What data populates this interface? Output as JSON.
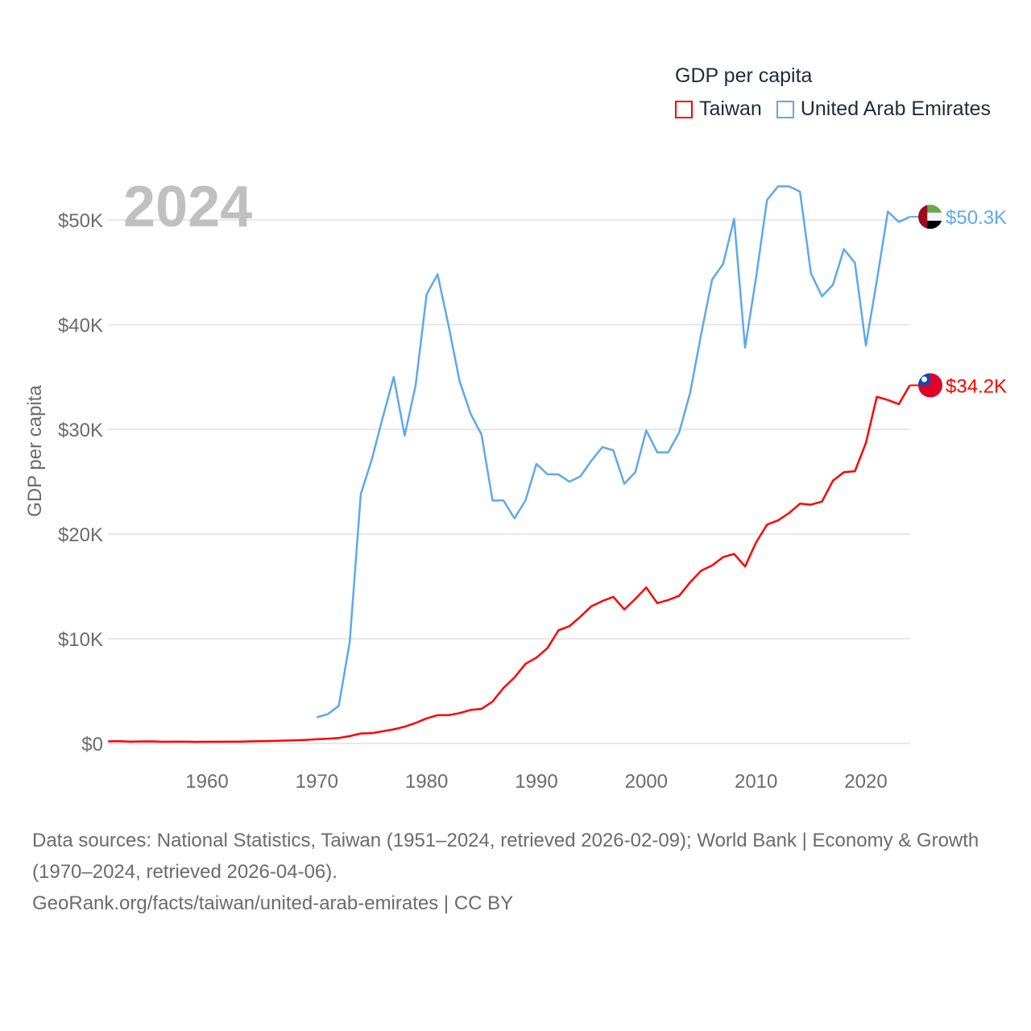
{
  "legend": {
    "title": "GDP per capita",
    "items": [
      {
        "label": "Taiwan",
        "color": "#ff0000"
      },
      {
        "label": "United Arab Emirates",
        "color": "#5ea8ef"
      }
    ]
  },
  "year_label": "2024",
  "source": {
    "line1": "Data sources: National Statistics, Taiwan (1951–2024, retrieved 2026-02-09); World Bank | Economy & Growth (1970–2024, retrieved 2026-04-06).",
    "line2": "GeoRank.org/facts/taiwan/united-arab-emirates | CC BY"
  },
  "chart_data": {
    "type": "line",
    "ylabel": "GDP per capita",
    "xlabel": "",
    "xlim": [
      1951,
      2024
    ],
    "ylim": [
      0,
      55
    ],
    "yticks": [
      {
        "v": 0,
        "label": "$0"
      },
      {
        "v": 10,
        "label": "$10K"
      },
      {
        "v": 20,
        "label": "$20K"
      },
      {
        "v": 30,
        "label": "$30K"
      },
      {
        "v": 40,
        "label": "$40K"
      },
      {
        "v": 50,
        "label": "$50K"
      }
    ],
    "xticks": [
      1960,
      1970,
      1980,
      1990,
      2000,
      2010,
      2020
    ],
    "grid": true,
    "units": "thousand USD",
    "series": [
      {
        "name": "Taiwan",
        "color": "#ff0000",
        "end_label": "$34.2K",
        "flag": "taiwan-flag",
        "start": 1951,
        "values": [
          0.2,
          0.22,
          0.18,
          0.19,
          0.2,
          0.16,
          0.17,
          0.18,
          0.15,
          0.16,
          0.16,
          0.17,
          0.18,
          0.2,
          0.22,
          0.24,
          0.27,
          0.3,
          0.34,
          0.4,
          0.45,
          0.52,
          0.7,
          0.95,
          0.98,
          1.16,
          1.35,
          1.6,
          1.95,
          2.4,
          2.7,
          2.7,
          2.9,
          3.2,
          3.3,
          4.0,
          5.3,
          6.3,
          7.6,
          8.2,
          9.1,
          10.8,
          11.2,
          12.1,
          13.1,
          13.6,
          14.0,
          12.8,
          13.8,
          14.9,
          13.4,
          13.7,
          14.1,
          15.4,
          16.5,
          17.0,
          17.8,
          18.1,
          16.9,
          19.2,
          20.9,
          21.3,
          22.0,
          22.9,
          22.8,
          23.1,
          25.1,
          25.9,
          26.0,
          28.7,
          33.1,
          32.8,
          32.4,
          34.2
        ]
      },
      {
        "name": "United Arab Emirates",
        "color": "#5ea8ef",
        "end_label": "$50.3K",
        "flag": "uae-flag",
        "start": 1970,
        "values": [
          2.5,
          2.8,
          3.6,
          9.7,
          23.8,
          27.1,
          31.1,
          35.0,
          29.4,
          34.2,
          42.9,
          44.8,
          39.9,
          34.6,
          31.5,
          29.5,
          23.2,
          23.2,
          21.5,
          23.2,
          26.7,
          25.7,
          25.7,
          25.0,
          25.5,
          27.0,
          28.3,
          28.0,
          24.8,
          25.9,
          29.9,
          27.8,
          27.8,
          29.7,
          33.5,
          39.1,
          44.3,
          45.8,
          50.1,
          37.8,
          44.5,
          51.9,
          53.2,
          53.2,
          52.7,
          44.9,
          42.7,
          43.8,
          47.2,
          45.9,
          38.0,
          44.2,
          50.8,
          49.8,
          50.3
        ]
      }
    ]
  }
}
